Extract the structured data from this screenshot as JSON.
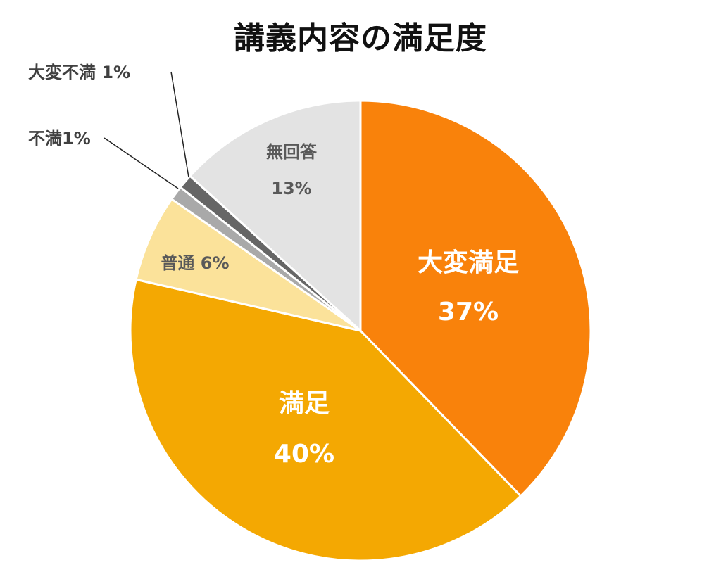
{
  "chart_data": {
    "type": "pie",
    "title": "講義内容の満足度",
    "slices": [
      {
        "name": "大変満足",
        "value": 37,
        "label": "37%",
        "color": "#F9820B",
        "label_color": "#FFFFFF"
      },
      {
        "name": "満足",
        "value": 40,
        "label": "40%",
        "color": "#F4A802",
        "label_color": "#FFFFFF"
      },
      {
        "name": "普通",
        "value": 6,
        "label": "6%",
        "color": "#FBE29A",
        "label_color": "#595959"
      },
      {
        "name": "不満",
        "value": 1,
        "label": "1%",
        "color": "#A9A9A9",
        "label_color": "#404040"
      },
      {
        "name": "大変不満",
        "value": 1,
        "label": "1%",
        "color": "#666666",
        "label_color": "#404040"
      },
      {
        "name": "無回答",
        "value": 13,
        "label": "13%",
        "color": "#E3E3E3",
        "label_color": "#595959"
      }
    ]
  }
}
